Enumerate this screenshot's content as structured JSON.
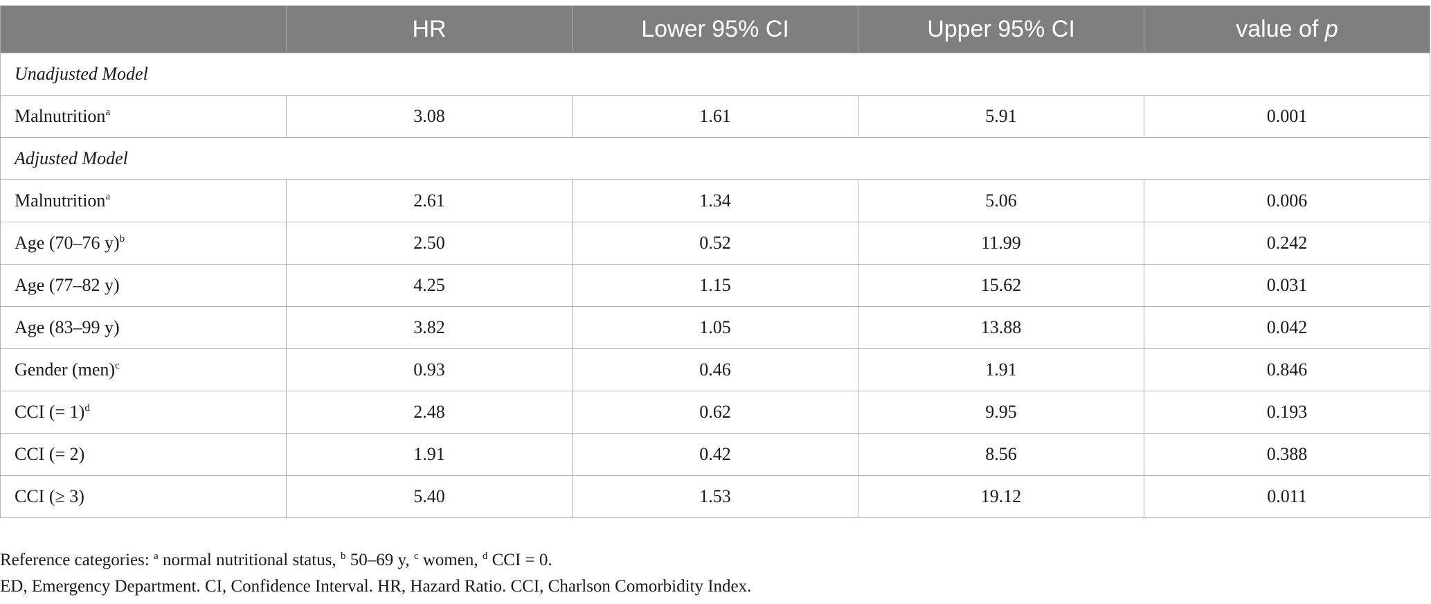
{
  "table": {
    "headers": [
      "",
      "HR",
      "Lower 95% CI",
      "Upper 95% CI",
      "value of",
      "p"
    ],
    "sections": [
      {
        "title": "Unadjusted Model",
        "rows": [
          {
            "label": "Malnutrition",
            "sup": "a",
            "hr": "3.08",
            "lower": "1.61",
            "upper": "5.91",
            "p": "0.001"
          }
        ]
      },
      {
        "title": "Adjusted Model",
        "rows": [
          {
            "label": "Malnutrition",
            "sup": "a",
            "hr": "2.61",
            "lower": "1.34",
            "upper": "5.06",
            "p": "0.006"
          },
          {
            "label": "Age (70–76 y)",
            "sup": "b",
            "hr": "2.50",
            "lower": "0.52",
            "upper": "11.99",
            "p": "0.242"
          },
          {
            "label": "Age (77–82 y)",
            "sup": "",
            "hr": "4.25",
            "lower": "1.15",
            "upper": "15.62",
            "p": "0.031"
          },
          {
            "label": "Age (83–99 y)",
            "sup": "",
            "hr": "3.82",
            "lower": "1.05",
            "upper": "13.88",
            "p": "0.042"
          },
          {
            "label": "Gender (men)",
            "sup": "c",
            "hr": "0.93",
            "lower": "0.46",
            "upper": "1.91",
            "p": "0.846"
          },
          {
            "label": "CCI (= 1)",
            "sup": "d",
            "hr": "2.48",
            "lower": "0.62",
            "upper": "9.95",
            "p": "0.193"
          },
          {
            "label": "CCI (= 2)",
            "sup": "",
            "hr": "1.91",
            "lower": "0.42",
            "upper": "8.56",
            "p": "0.388"
          },
          {
            "label": "CCI (≥ 3)",
            "sup": "",
            "hr": "5.40",
            "lower": "1.53",
            "upper": "19.12",
            "p": "0.011"
          }
        ]
      }
    ]
  },
  "notes": {
    "ref_prefix": "Reference categories: ",
    "ref_items": [
      {
        "sup": "a",
        "text": " normal nutritional status, "
      },
      {
        "sup": "b",
        "text": " 50–69 y, "
      },
      {
        "sup": "c",
        "text": " women, "
      },
      {
        "sup": "d",
        "text": " CCI = 0."
      }
    ],
    "abbreviations": "ED, Emergency Department. CI, Confidence Interval. HR, Hazard Ratio. CCI, Charlson Comorbidity Index."
  }
}
